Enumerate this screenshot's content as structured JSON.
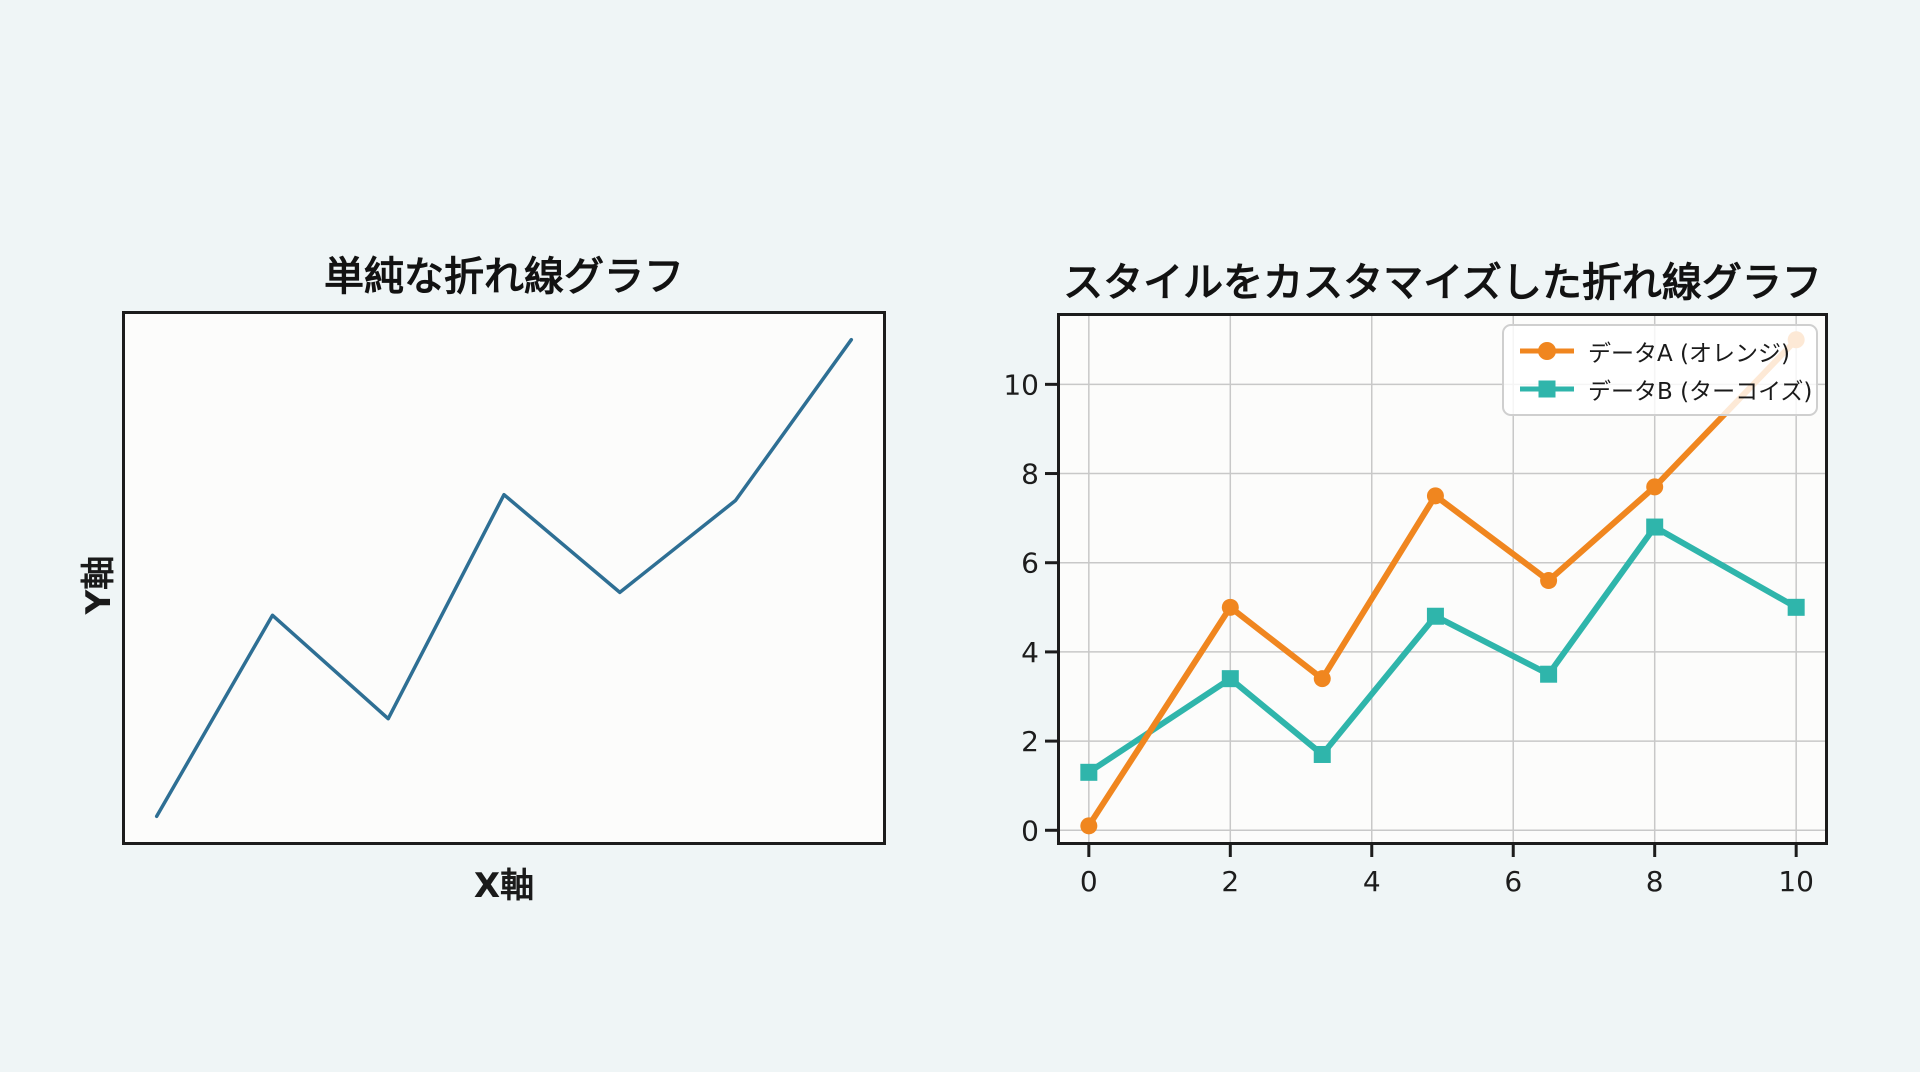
{
  "page": {
    "background_color": "#EFF5F6",
    "plot_background_color": "#FCFCFB",
    "axis_color": "#1C1C1C",
    "grid_color": "#C8C8C8",
    "text_color": "#1A1A1A"
  },
  "chart_data": [
    {
      "type": "line",
      "title": "単純な折れ線グラフ",
      "xlabel": "X軸",
      "ylabel": "Y軸",
      "x": [
        1,
        2,
        3,
        4,
        5,
        6,
        7
      ],
      "y": [
        0.7,
        4.2,
        2.4,
        6.3,
        4.6,
        6.2,
        9.0
      ],
      "line_color": "#2E6F94",
      "xlim": [
        0.7,
        7.3
      ],
      "ylim": [
        0.2,
        9.5
      ],
      "grid": false,
      "ticks_visible": false,
      "legend": null
    },
    {
      "type": "line",
      "title": "スタイルをカスタマイズした折れ線グラフ",
      "xlabel": "",
      "ylabel": "",
      "x": [
        0,
        2,
        3.3,
        4.9,
        6.5,
        8,
        10
      ],
      "series": [
        {
          "name": "データA (オレンジ)",
          "color": "#F0861F",
          "marker": "circle",
          "values": [
            0.1,
            5.0,
            3.4,
            7.5,
            5.6,
            7.7,
            11.0
          ]
        },
        {
          "name": "データB (ターコイズ)",
          "color": "#2FB5AB",
          "marker": "square",
          "values": [
            1.3,
            3.4,
            1.7,
            4.8,
            3.5,
            6.8,
            5.0
          ]
        }
      ],
      "x_ticks": [
        0,
        2,
        4,
        6,
        8,
        10
      ],
      "y_ticks": [
        0,
        2,
        4,
        6,
        8,
        10
      ],
      "xlim": [
        -0.45,
        10.45
      ],
      "ylim": [
        -0.33,
        11.6
      ],
      "grid": true,
      "legend_position": "upper right"
    }
  ]
}
